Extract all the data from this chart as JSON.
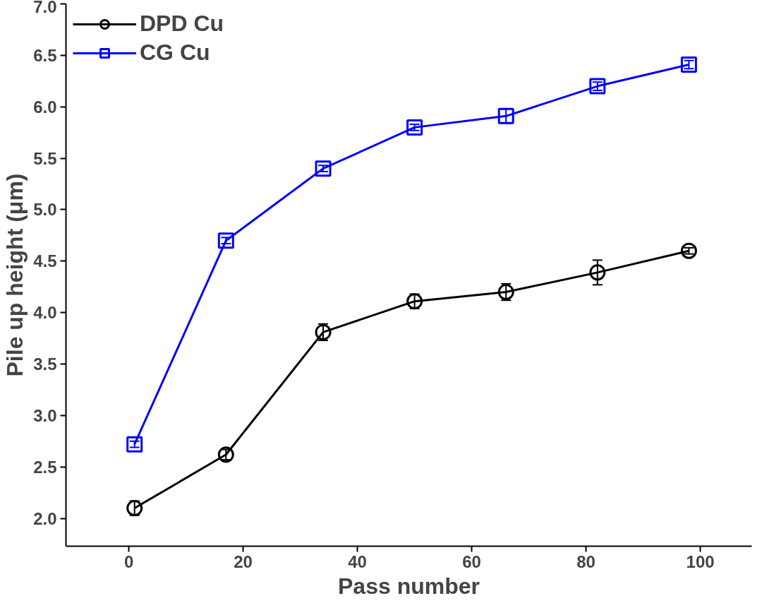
{
  "chart_data": {
    "type": "line",
    "xlabel": "Pass number",
    "ylabel": "Pile up height (μm)",
    "x": [
      1,
      17,
      34,
      50,
      66,
      82,
      98
    ],
    "series": [
      {
        "name": "DPD Cu",
        "color": "#000000",
        "marker": "circle",
        "values": [
          2.1,
          2.62,
          3.81,
          4.11,
          4.2,
          4.39,
          4.6
        ],
        "errors": [
          0.07,
          0.05,
          0.08,
          0.07,
          0.08,
          0.12,
          0.03
        ]
      },
      {
        "name": "CG Cu",
        "color": "#0000ff",
        "marker": "square",
        "values": [
          2.72,
          4.7,
          5.4,
          5.8,
          5.91,
          6.2,
          6.41
        ],
        "errors": [
          0.03,
          0.03,
          0.03,
          0.03,
          0.07,
          0.04,
          0.04
        ]
      }
    ],
    "xlim": [
      -11,
      109
    ],
    "ylim": [
      1.73,
      7.0
    ],
    "xticks": [
      0,
      20,
      40,
      60,
      80,
      100
    ],
    "yticks": [
      {
        "value": 2,
        "label": "2.0"
      },
      {
        "value": 2.5,
        "label": "2.5"
      },
      {
        "value": 3,
        "label": "3.0"
      },
      {
        "value": 3.5,
        "label": "3.5"
      },
      {
        "value": 4,
        "label": "4.0"
      },
      {
        "value": 4.5,
        "label": "4.5"
      },
      {
        "value": 5,
        "label": "5.0"
      },
      {
        "value": 5.5,
        "label": "5.5"
      },
      {
        "value": 6,
        "label": "6.0"
      },
      {
        "value": 6.5,
        "label": "6.5"
      },
      {
        "value": 7,
        "label": "7.0"
      }
    ],
    "grid": false,
    "legend": "top left",
    "line_style": "solid"
  }
}
